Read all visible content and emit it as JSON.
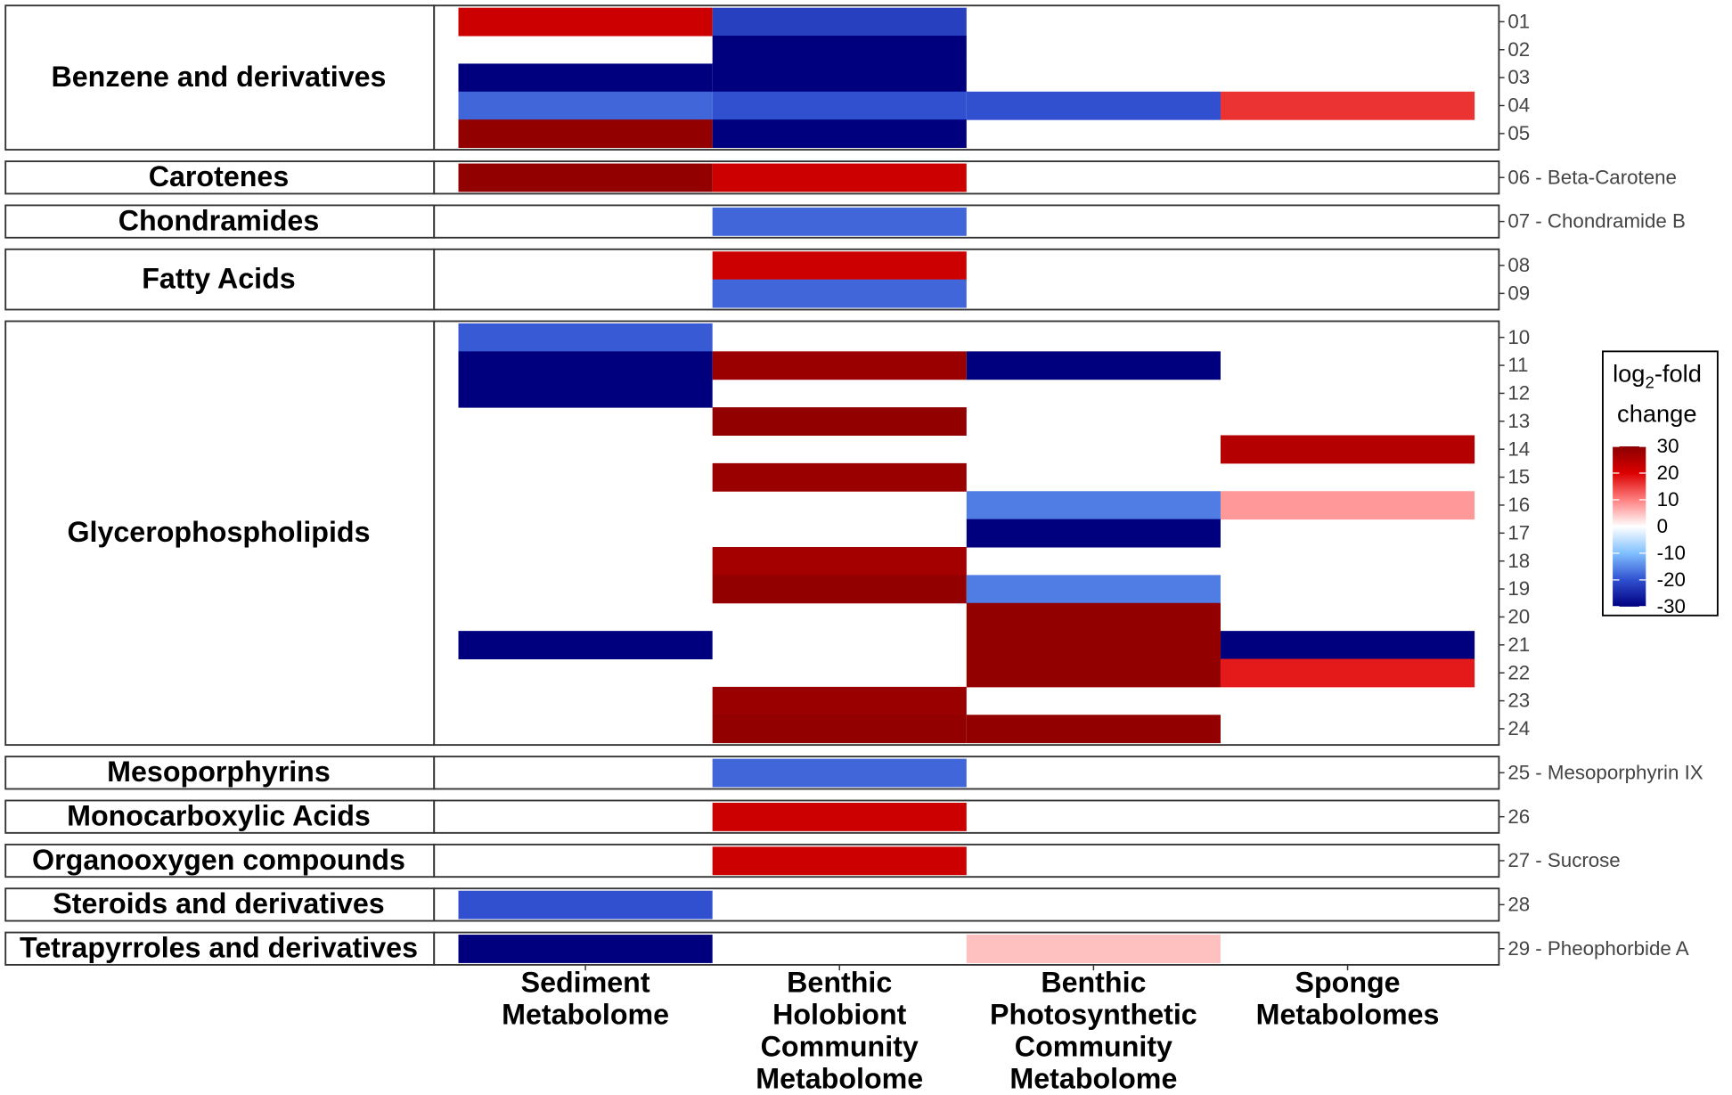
{
  "chart_data": {
    "type": "heatmap",
    "columns": [
      [
        "Sediment",
        "Metabolome"
      ],
      [
        "Benthic",
        "Holobiont",
        "Community",
        "Metabolome"
      ],
      [
        "Benthic",
        "Photosynthetic",
        "Community",
        "Metabolome"
      ],
      [
        "Sponge",
        "Metabolomes"
      ]
    ],
    "groups": [
      {
        "name": "Benzene and derivatives",
        "rows": [
          "01",
          "02",
          "03",
          "04",
          "05"
        ],
        "values": [
          [
            22,
            -22,
            null,
            null
          ],
          [
            null,
            -30,
            null,
            null
          ],
          [
            -30,
            -30,
            null,
            null
          ],
          [
            -18,
            -20,
            -20,
            16
          ],
          [
            29,
            -30,
            null,
            null
          ]
        ]
      },
      {
        "name": "Carotenes",
        "rows": [
          "06 - Beta-Carotene"
        ],
        "values": [
          [
            29,
            22,
            null,
            null
          ]
        ]
      },
      {
        "name": "Chondramides",
        "rows": [
          "07 - Chondramide B"
        ],
        "values": [
          [
            null,
            -18,
            null,
            null
          ]
        ]
      },
      {
        "name": "Fatty Acids",
        "rows": [
          "08",
          "09"
        ],
        "values": [
          [
            null,
            22,
            null,
            null
          ],
          [
            null,
            -18,
            null,
            null
          ]
        ]
      },
      {
        "name": "Glycerophospholipids",
        "rows": [
          "10",
          "11",
          "12",
          "13",
          "14",
          "15",
          "16",
          "17",
          "18",
          "19",
          "20",
          "21",
          "22",
          "23",
          "24"
        ],
        "values": [
          [
            -19,
            null,
            null,
            null
          ],
          [
            -30,
            28,
            -30,
            null
          ],
          [
            -30,
            null,
            null,
            null
          ],
          [
            null,
            29,
            null,
            null
          ],
          [
            null,
            null,
            null,
            25
          ],
          [
            null,
            28,
            null,
            null
          ],
          [
            null,
            null,
            -16,
            8
          ],
          [
            null,
            null,
            -30,
            null
          ],
          [
            null,
            27,
            null,
            null
          ],
          [
            null,
            29,
            -16,
            null
          ],
          [
            null,
            null,
            29,
            null
          ],
          [
            -30,
            null,
            29,
            -30
          ],
          [
            null,
            null,
            29,
            18
          ],
          [
            null,
            28,
            null,
            null
          ],
          [
            null,
            29,
            29,
            null
          ]
        ]
      },
      {
        "name": "Mesoporphyrins",
        "rows": [
          "25 - Mesoporphyrin IX"
        ],
        "values": [
          [
            null,
            -18,
            null,
            null
          ]
        ]
      },
      {
        "name": "Monocarboxylic Acids",
        "rows": [
          "26"
        ],
        "values": [
          [
            null,
            22,
            null,
            null
          ]
        ]
      },
      {
        "name": "Organooxygen compounds",
        "rows": [
          "27 - Sucrose"
        ],
        "values": [
          [
            null,
            22,
            null,
            null
          ]
        ]
      },
      {
        "name": "Steroids and derivatives",
        "rows": [
          "28"
        ],
        "values": [
          [
            -20,
            null,
            null,
            null
          ]
        ]
      },
      {
        "name": "Tetrapyrroles and derivatives",
        "rows": [
          "29 - Pheophorbide A"
        ],
        "values": [
          [
            -30,
            null,
            5,
            null
          ]
        ]
      }
    ],
    "legend_title": [
      "log",
      "2",
      "-fold",
      "change"
    ],
    "clim": [
      -30,
      30
    ],
    "cticks": [
      30,
      20,
      10,
      0,
      -10,
      -20,
      -30
    ],
    "colorscale": [
      "#00007f",
      "#3050d0",
      "#80c0ff",
      "#ffffff",
      "#ff8080",
      "#dd0000",
      "#8b0000"
    ]
  }
}
